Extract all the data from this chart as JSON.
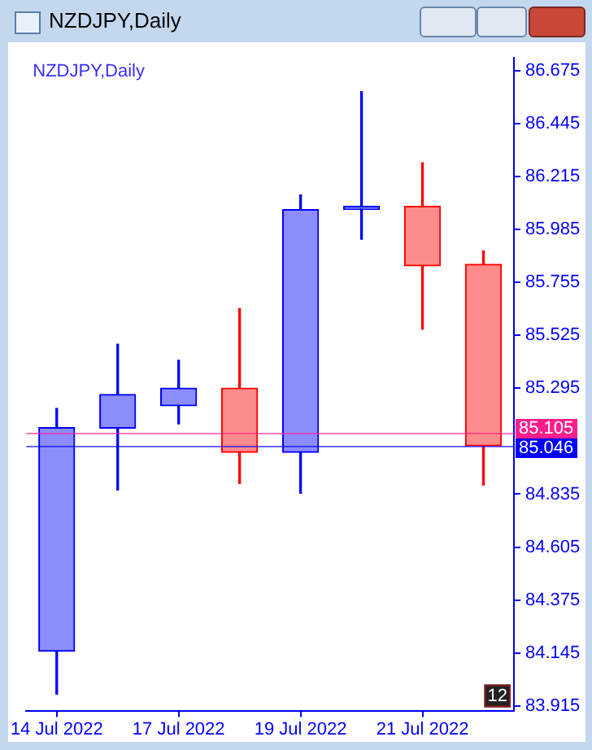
{
  "chart_data": {
    "type": "candlestick",
    "title": "NZDJPY,Daily",
    "subtitle": "NZDJPY,Daily",
    "categories": [
      "14 Jul 2022",
      null,
      "17 Jul 2022",
      null,
      "19 Jul 2022",
      null,
      "21 Jul 2022",
      null
    ],
    "ohlc": [
      [
        84.152,
        85.207,
        83.966,
        85.124
      ],
      [
        85.122,
        85.487,
        84.853,
        85.268
      ],
      [
        85.219,
        85.417,
        85.14,
        85.296
      ],
      [
        85.296,
        85.641,
        84.881,
        85.017
      ],
      [
        85.017,
        86.135,
        84.839,
        86.072
      ],
      [
        86.072,
        86.584,
        85.943,
        86.086
      ],
      [
        86.086,
        86.275,
        85.552,
        85.827
      ],
      [
        85.834,
        85.892,
        84.874,
        85.045
      ]
    ],
    "colors": [
      "#0000ff",
      "#0000ff",
      "#0000ff",
      "#ff0000",
      "#0000ff",
      "#0000ff",
      "#ff0000",
      "#ff0000"
    ],
    "ylim": [
      83.894,
      86.731
    ],
    "yticks": [
      83.915,
      84.145,
      84.375,
      84.605,
      84.835,
      85.295,
      85.525,
      85.755,
      85.985,
      86.215,
      86.445,
      86.675
    ],
    "ref_lines": [
      {
        "axis": "y",
        "value": 85.105,
        "label": "85.105",
        "color": "#ff1e8c"
      },
      {
        "axis": "y",
        "value": 85.046,
        "label": "85.046",
        "color": "#0000ff"
      }
    ],
    "annotations": [
      "12"
    ],
    "grid": false,
    "legend": false
  }
}
